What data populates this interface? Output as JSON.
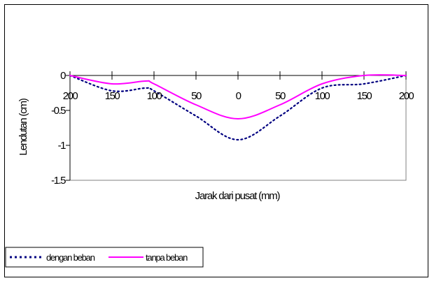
{
  "chart_data": {
    "type": "line",
    "title": "",
    "xlabel": "Jarak dari pusat (mm)",
    "ylabel": "Lendutan (cm)",
    "ylim": [
      -1.5,
      0
    ],
    "yticks": [
      0,
      -0.5,
      -1,
      -1.5
    ],
    "ytick_labels": [
      "0",
      "-0.5",
      "-1",
      "-1.5"
    ],
    "xticks": [
      -200,
      -150,
      -100,
      -50,
      0,
      50,
      100,
      150,
      200
    ],
    "xtick_labels": [
      "200",
      "150",
      "100",
      "50",
      "0",
      "50",
      "100",
      "150",
      "200"
    ],
    "xlim": [
      -200,
      200
    ],
    "grid": false,
    "legend_position": "bottom-left",
    "series": [
      {
        "name": "dengan beban",
        "style": "dotted",
        "color": "#000080",
        "x": [
          -200,
          -150,
          -110,
          -100,
          -50,
          0,
          50,
          100,
          150,
          200
        ],
        "y": [
          0,
          -0.22,
          -0.18,
          -0.22,
          -0.58,
          -0.92,
          -0.58,
          -0.18,
          -0.12,
          0
        ]
      },
      {
        "name": "tanpa beban",
        "style": "solid",
        "color": "#FF00FF",
        "x": [
          -200,
          -150,
          -110,
          -100,
          -50,
          0,
          50,
          100,
          150,
          200
        ],
        "y": [
          0,
          -0.12,
          -0.08,
          -0.12,
          -0.42,
          -0.62,
          -0.42,
          -0.12,
          0,
          0
        ]
      }
    ]
  }
}
